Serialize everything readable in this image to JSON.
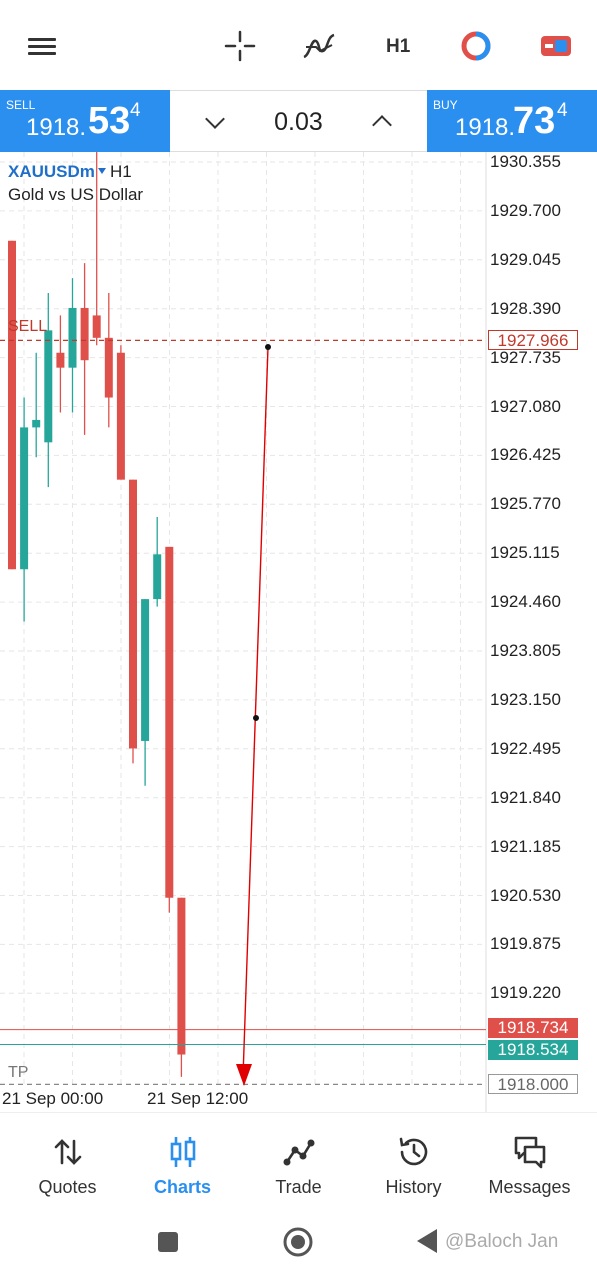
{
  "top_bar": {
    "timeframe_button": "H1",
    "icons": [
      "hamburger-menu-icon",
      "crosshair-icon",
      "indicators-icon",
      "timeframe-button",
      "objects-icon",
      "trade-toggle-icon"
    ]
  },
  "trade_panel": {
    "sell": {
      "label": "SELL",
      "price_small": "1918.",
      "price_big": "53",
      "price_sup": "4"
    },
    "buy": {
      "label": "BUY",
      "price_small": "1918.",
      "price_big": "73",
      "price_sup": "4"
    },
    "lot": "0.03"
  },
  "chart": {
    "symbol": "XAUUSDm",
    "timeframe": "H1",
    "description": "Gold vs US Dollar",
    "sell_line_label": "SELL",
    "tp_label": "TP",
    "price_tags": {
      "sell_order": "1927.966",
      "ask": "1918.734",
      "bid": "1918.534",
      "tp": "1918.000"
    },
    "colors": {
      "bull": "#26a69a",
      "bear": "#e0504b",
      "accent": "#2b8ff0"
    }
  },
  "chart_data": {
    "type": "candlestick",
    "y_ticks": [
      "1930.355",
      "1929.700",
      "1929.045",
      "1928.390",
      "1927.735",
      "1927.080",
      "1926.425",
      "1925.770",
      "1925.115",
      "1924.460",
      "1923.805",
      "1923.150",
      "1922.495",
      "1921.840",
      "1921.185",
      "1920.530",
      "1919.875",
      "1919.220"
    ],
    "x_ticks": [
      "21 Sep 00:00",
      "21 Sep 12:00"
    ],
    "ylim": [
      1918.0,
      1930.4
    ],
    "candles": [
      {
        "o": 1929.3,
        "h": 1929.3,
        "l": 1924.9,
        "c": 1924.9
      },
      {
        "o": 1924.9,
        "h": 1927.2,
        "l": 1924.2,
        "c": 1926.8
      },
      {
        "o": 1926.8,
        "h": 1927.8,
        "l": 1926.4,
        "c": 1926.9
      },
      {
        "o": 1926.6,
        "h": 1928.6,
        "l": 1926.0,
        "c": 1928.1
      },
      {
        "o": 1927.8,
        "h": 1928.3,
        "l": 1927.0,
        "c": 1927.6
      },
      {
        "o": 1927.6,
        "h": 1928.8,
        "l": 1927.0,
        "c": 1928.4
      },
      {
        "o": 1928.4,
        "h": 1929.0,
        "l": 1926.7,
        "c": 1927.7
      },
      {
        "o": 1928.3,
        "h": 1930.9,
        "l": 1927.9,
        "c": 1928.0
      },
      {
        "o": 1928.0,
        "h": 1928.6,
        "l": 1926.8,
        "c": 1927.2
      },
      {
        "o": 1927.8,
        "h": 1927.9,
        "l": 1926.1,
        "c": 1926.1
      },
      {
        "o": 1926.1,
        "h": 1926.1,
        "l": 1922.3,
        "c": 1922.5
      },
      {
        "o": 1922.6,
        "h": 1924.5,
        "l": 1922.0,
        "c": 1924.5
      },
      {
        "o": 1924.5,
        "h": 1925.6,
        "l": 1924.4,
        "c": 1925.1
      },
      {
        "o": 1925.2,
        "h": 1925.2,
        "l": 1920.3,
        "c": 1920.5
      },
      {
        "o": 1920.5,
        "h": 1920.5,
        "l": 1918.1,
        "c": 1918.4
      }
    ],
    "sell_level": 1927.966,
    "ask_level": 1918.734,
    "bid_level": 1918.534,
    "tp_level": 1918.0
  },
  "bottom_nav": [
    {
      "label": "Quotes",
      "icon": "quotes-icon",
      "active": false
    },
    {
      "label": "Charts",
      "icon": "charts-icon",
      "active": true
    },
    {
      "label": "Trade",
      "icon": "trade-icon",
      "active": false
    },
    {
      "label": "History",
      "icon": "history-icon",
      "active": false
    },
    {
      "label": "Messages",
      "icon": "messages-icon",
      "active": false
    }
  ],
  "system_nav": {
    "watermark": "@Baloch Jan"
  }
}
